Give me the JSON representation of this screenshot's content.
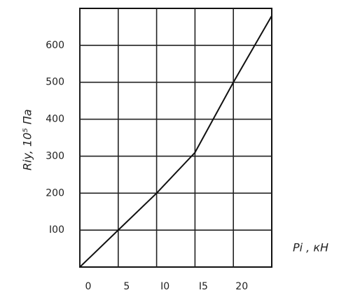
{
  "chart_data": {
    "type": "line",
    "y_label": "Riy, 10⁵ Па",
    "x_label": "Pi , кН",
    "x": [
      0,
      5,
      10,
      15,
      20,
      25
    ],
    "series": [
      {
        "color": "#111111",
        "values": [
          0,
          100,
          200,
          310,
          500,
          680
        ]
      }
    ],
    "xlim": [
      0,
      25
    ],
    "ylim": [
      0,
      700
    ],
    "xticks": [
      0,
      5,
      {
        "value": 10,
        "label": "I0"
      },
      {
        "value": 15,
        "label": "I5"
      },
      20
    ],
    "yticks": [
      {
        "value": 100,
        "label": "I00"
      },
      200,
      300,
      400,
      500,
      600
    ],
    "grid": true
  }
}
